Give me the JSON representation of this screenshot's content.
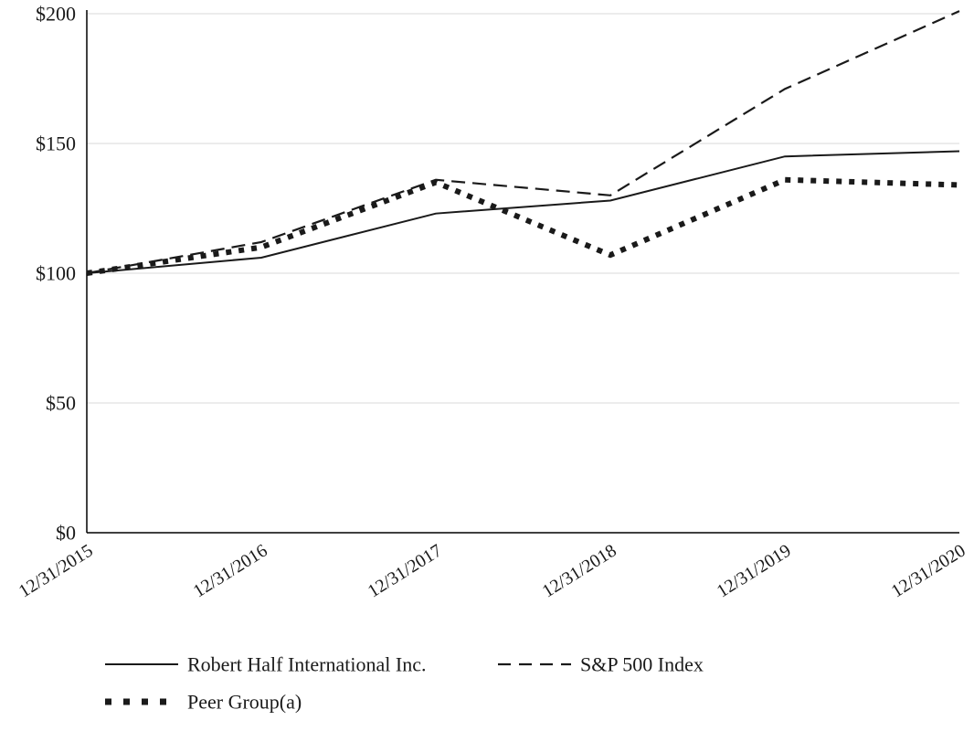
{
  "chart_data": {
    "type": "line",
    "title": "",
    "xlabel": "",
    "ylabel": "",
    "ylim": [
      0,
      200
    ],
    "grid": true,
    "legend_position": "bottom",
    "x_labels": [
      "12/31/2015",
      "12/31/2016",
      "12/31/2017",
      "12/31/2018",
      "12/31/2019",
      "12/31/2020"
    ],
    "y_ticks": [
      {
        "label": "$0",
        "value": 0
      },
      {
        "label": "$50",
        "value": 50
      },
      {
        "label": "$100",
        "value": 100
      },
      {
        "label": "$150",
        "value": 150
      },
      {
        "label": "$200",
        "value": 200
      }
    ],
    "series": [
      {
        "name": "Robert Half International Inc.",
        "style": "solid",
        "values": [
          100,
          106,
          123,
          128,
          145,
          147
        ]
      },
      {
        "name": "S&P 500 Index",
        "style": "dashed",
        "values": [
          100,
          112,
          136,
          130,
          171,
          201
        ]
      },
      {
        "name": "Peer Group(a)",
        "style": "dotted",
        "values": [
          100,
          110,
          135,
          107,
          136,
          134
        ]
      }
    ],
    "colors": {
      "line": "#1a1a1a",
      "grid": "#d9d9d9",
      "axis": "#000000",
      "background": "#ffffff"
    }
  }
}
